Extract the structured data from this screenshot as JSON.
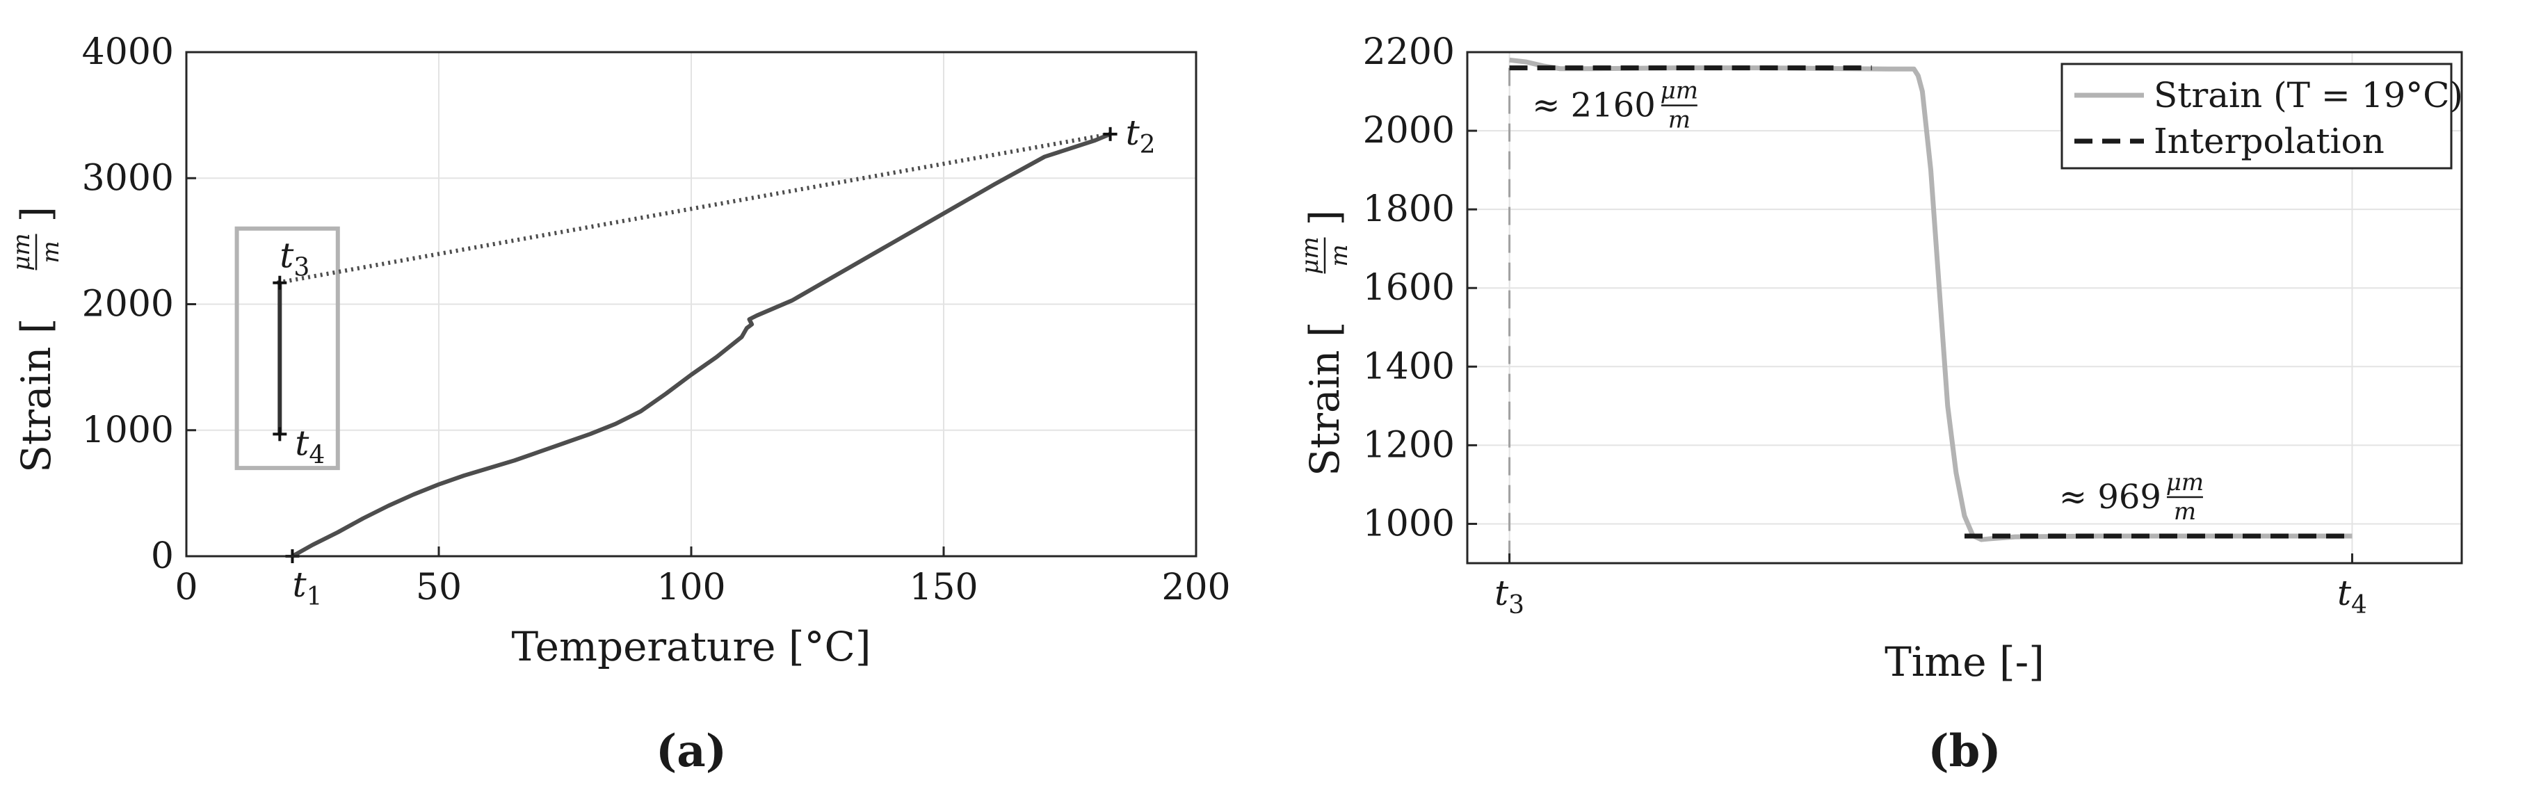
{
  "panels": [
    {
      "id": "a",
      "panel_label": "(a)",
      "xlabel": "Temperature [°C]",
      "ylabel": "Strain [μm/m]",
      "ylabel_unit_num": "μm",
      "ylabel_unit_den": "m",
      "xticks": [
        "0",
        "50",
        "100",
        "150",
        "200"
      ],
      "yticks": [
        "0",
        "1000",
        "2000",
        "3000",
        "4000"
      ],
      "point_labels": [
        {
          "text": "t1",
          "base": "t",
          "sub": "1"
        },
        {
          "text": "t2",
          "base": "t",
          "sub": "2"
        },
        {
          "text": "t3",
          "base": "t",
          "sub": "3"
        },
        {
          "text": "t4",
          "base": "t",
          "sub": "4"
        }
      ]
    },
    {
      "id": "b",
      "panel_label": "(b)",
      "xlabel": "Time [-]",
      "ylabel": "Strain [μm/m]",
      "ylabel_unit_num": "μm",
      "ylabel_unit_den": "m",
      "yticks": [
        "1000",
        "1200",
        "1400",
        "1600",
        "1800",
        "2000",
        "2200"
      ],
      "xticks": [
        {
          "text": "t3",
          "base": "t",
          "sub": "3"
        },
        {
          "text": "t4",
          "base": "t",
          "sub": "4"
        }
      ],
      "legend": [
        {
          "label": "Strain (T = 19°C)",
          "color": "#b3b3b3",
          "style": "solid"
        },
        {
          "label": "Interpolation",
          "color": "#1a1a1a",
          "style": "dashed"
        }
      ],
      "annotations": [
        {
          "prefix": "≈ 2160",
          "unit_num": "μm",
          "unit_den": "m"
        },
        {
          "prefix": "≈ 969",
          "unit_num": "μm",
          "unit_den": "m"
        }
      ]
    }
  ],
  "chart_data": [
    {
      "type": "line",
      "xlim": [
        0,
        200
      ],
      "ylim": [
        0,
        4000
      ],
      "grid": true,
      "series": [
        {
          "color": "#4d4d4d",
          "style": "solid",
          "x": [
            21,
            25,
            30,
            35,
            40,
            45,
            50,
            55,
            60,
            65,
            70,
            75,
            80,
            85,
            90,
            95,
            100,
            105,
            110,
            111,
            112,
            111.5,
            113,
            120,
            130,
            140,
            150,
            160,
            170,
            180,
            183
          ],
          "y": [
            0,
            90,
            190,
            300,
            400,
            490,
            570,
            640,
            700,
            760,
            830,
            900,
            970,
            1050,
            1150,
            1290,
            1440,
            1580,
            1740,
            1810,
            1840,
            1880,
            1910,
            2030,
            2260,
            2490,
            2720,
            2950,
            3170,
            3300,
            3350
          ]
        },
        {
          "color": "#4d4d4d",
          "style": "dotted",
          "x": [
            18,
            183
          ],
          "y": [
            2170,
            3350
          ]
        },
        {
          "color": "#333333",
          "style": "solid",
          "x": [
            18.5,
            18.5
          ],
          "y": [
            2170,
            969
          ]
        }
      ],
      "markers": [
        {
          "label": "t1",
          "x": 21,
          "y": 0
        },
        {
          "label": "t2",
          "x": 183,
          "y": 3350
        },
        {
          "label": "t3",
          "x": 18.5,
          "y": 2170
        },
        {
          "label": "t4",
          "x": 18.5,
          "y": 969
        }
      ],
      "highlight_box": {
        "x": [
          10,
          30
        ],
        "y": [
          700,
          2600
        ],
        "color": "#b3b3b3"
      }
    },
    {
      "type": "line",
      "xlim": [
        -0.05,
        1.13
      ],
      "ylim": [
        900,
        2200
      ],
      "grid": true,
      "series": [
        {
          "name": "Strain (T = 19°C)",
          "color": "#b3b3b3",
          "style": "solid",
          "x": [
            0,
            0.02,
            0.04,
            0.06,
            0.1,
            0.2,
            0.3,
            0.4,
            0.45,
            0.48,
            0.485,
            0.49,
            0.5,
            0.51,
            0.52,
            0.53,
            0.54,
            0.55,
            0.56,
            0.57,
            0.6,
            0.7,
            0.8,
            0.9,
            1.0
          ],
          "y": [
            2180,
            2175,
            2165,
            2158,
            2158,
            2160,
            2160,
            2158,
            2157,
            2157,
            2140,
            2100,
            1900,
            1600,
            1300,
            1130,
            1020,
            970,
            960,
            962,
            967,
            969,
            969,
            969,
            969
          ]
        },
        {
          "name": "Interpolation",
          "color": "#1a1a1a",
          "style": "dashed",
          "segments": [
            {
              "x": [
                0,
                0.43
              ],
              "y": [
                2160,
                2160
              ]
            },
            {
              "x": [
                0.54,
                1.0
              ],
              "y": [
                969,
                969
              ]
            }
          ]
        }
      ],
      "vertical_markers": [
        {
          "label": "t3",
          "x": 0
        },
        {
          "label": "t4",
          "x": 1.0
        }
      ],
      "annotations": [
        {
          "text": "≈ 2160 μm/m",
          "x": 0.19,
          "y": 2160
        },
        {
          "text": "≈ 969 μm/m",
          "x": 0.79,
          "y": 969
        }
      ]
    }
  ]
}
